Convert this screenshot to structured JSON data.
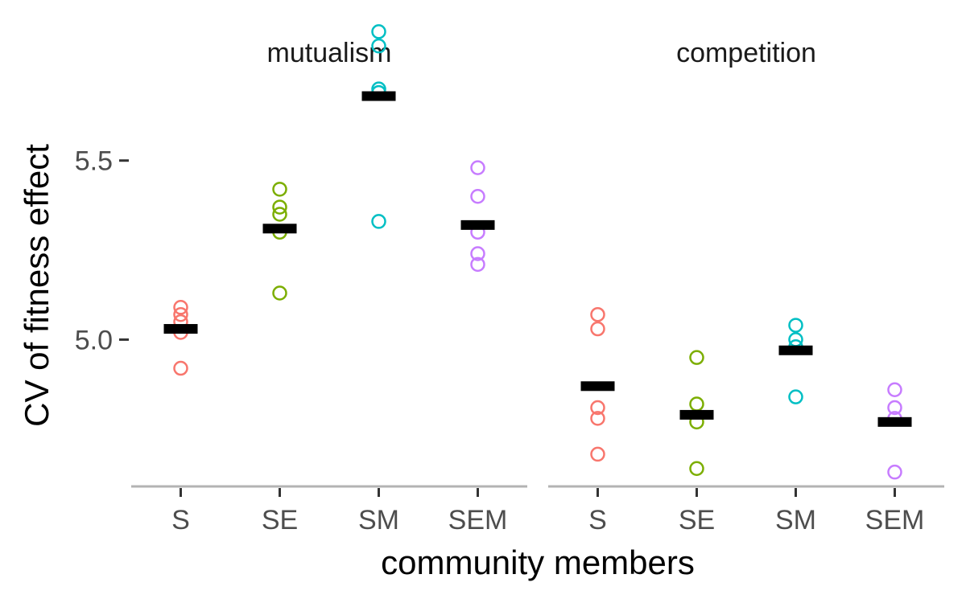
{
  "chart_data": {
    "type": "scatter",
    "ylabel": "CV of fitness effect",
    "xlabel": "community members",
    "ylim": [
      4.59,
      5.89
    ],
    "yticks": [
      5.0,
      5.5
    ],
    "ytick_labels": [
      "5.0",
      "5.5"
    ],
    "categories": [
      "S",
      "SE",
      "SM",
      "SEM"
    ],
    "grid": false,
    "legend": "none",
    "colors": {
      "S": "#F8766D",
      "SE": "#7CAE00",
      "SM": "#00BFC4",
      "SEM": "#C77CFF"
    },
    "mean_color": "#000000",
    "panels": [
      {
        "title": "mutualism",
        "groups": [
          {
            "category": "S",
            "mean": 5.03,
            "points": [
              5.09,
              5.07,
              5.05,
              5.02,
              4.92
            ]
          },
          {
            "category": "SE",
            "mean": 5.31,
            "points": [
              5.42,
              5.37,
              5.35,
              5.3,
              5.13
            ]
          },
          {
            "category": "SM",
            "mean": 5.68,
            "points": [
              5.86,
              5.82,
              5.7,
              5.69,
              5.33
            ]
          },
          {
            "category": "SEM",
            "mean": 5.32,
            "points": [
              5.48,
              5.4,
              5.3,
              5.24,
              5.21
            ]
          }
        ]
      },
      {
        "title": "competition",
        "groups": [
          {
            "category": "S",
            "mean": 4.87,
            "points": [
              5.07,
              5.03,
              4.81,
              4.78,
              4.68
            ]
          },
          {
            "category": "SE",
            "mean": 4.79,
            "points": [
              4.95,
              4.82,
              4.77,
              4.64
            ]
          },
          {
            "category": "SM",
            "mean": 4.97,
            "points": [
              5.04,
              5.0,
              4.98,
              4.84
            ]
          },
          {
            "category": "SEM",
            "mean": 4.77,
            "points": [
              4.86,
              4.81,
              4.78,
              4.63
            ]
          }
        ]
      }
    ]
  }
}
